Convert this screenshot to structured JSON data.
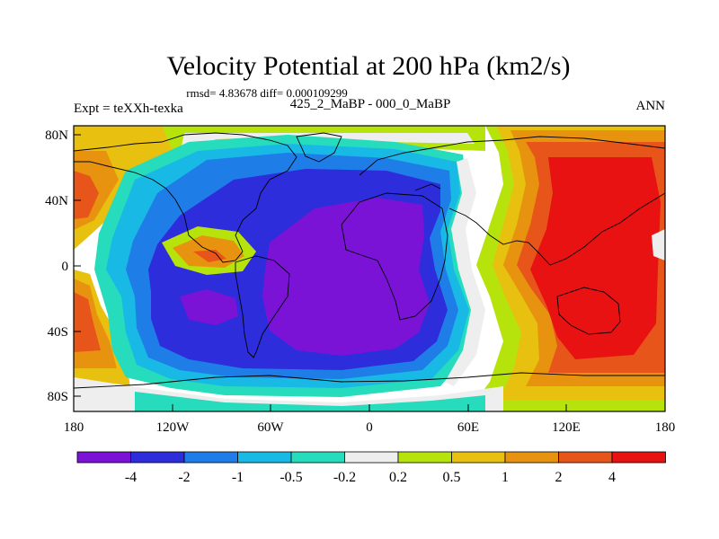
{
  "title": "Velocity Potential at 200 hPa (km2/s)",
  "stats": "rmsd= 4.83678 diff= 0.000109299",
  "experiment": "Expt = teXXh-texka",
  "comparison": "425_2_MaBP - 000_0_MaBP",
  "season": "ANN",
  "y_ticks": [
    "80N",
    "40N",
    "0",
    "40S",
    "80S"
  ],
  "x_ticks": [
    "180",
    "120W",
    "60W",
    "0",
    "60E",
    "120E",
    "180"
  ],
  "colorbar": {
    "labels": [
      "-4",
      "-2",
      "-1",
      "-0.5",
      "-0.2",
      "0.2",
      "0.5",
      "1",
      "2",
      "4"
    ],
    "colors": [
      "#7b13d6",
      "#2d2ddc",
      "#1f7de8",
      "#19b9e6",
      "#26dcbc",
      "#eeeeee",
      "#b7e30d",
      "#e8c00f",
      "#e8930f",
      "#e8551a",
      "#e81212"
    ]
  }
}
